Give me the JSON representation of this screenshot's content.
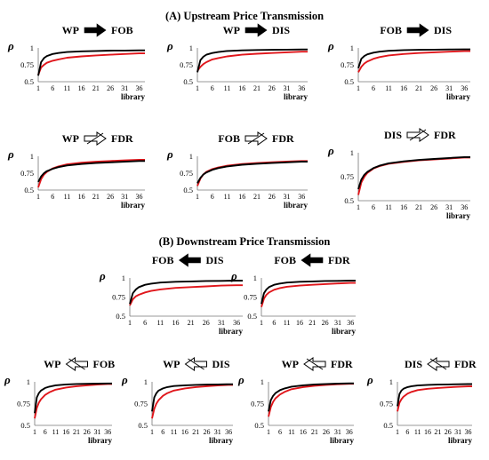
{
  "sections": {
    "upstream": "(A)  Upstream Price Transmission",
    "downstream": "(B)  Downstream Price Transmission"
  },
  "colors": {
    "series_black": "#000000",
    "series_red": "#e0161b",
    "axis": "#777777"
  },
  "chart_data": [
    {
      "id": "A1",
      "type": "line",
      "from": "WP",
      "to": "FOB",
      "arrow": "solid-right",
      "ylabel": "ρ",
      "xlabel": "library",
      "yticks": [
        "0.5",
        "0.75",
        "1"
      ],
      "ylim": [
        0.5,
        1
      ],
      "xticks": [
        1,
        6,
        11,
        16,
        21,
        26,
        31,
        36
      ],
      "xlim": [
        1,
        38
      ],
      "series": [
        {
          "color": "black",
          "x": [
            1,
            2,
            3,
            4,
            6,
            8,
            11,
            16,
            21,
            26,
            31,
            36,
            38
          ],
          "values": [
            0.59,
            0.79,
            0.85,
            0.88,
            0.91,
            0.925,
            0.94,
            0.95,
            0.955,
            0.96,
            0.962,
            0.965,
            0.965
          ]
        },
        {
          "color": "red",
          "x": [
            1,
            2,
            3,
            4,
            6,
            8,
            11,
            16,
            21,
            26,
            31,
            36,
            38
          ],
          "values": [
            0.6,
            0.71,
            0.75,
            0.78,
            0.81,
            0.83,
            0.855,
            0.875,
            0.89,
            0.9,
            0.91,
            0.92,
            0.92
          ]
        }
      ]
    },
    {
      "id": "A2",
      "type": "line",
      "from": "WP",
      "to": "DIS",
      "arrow": "solid-right",
      "ylabel": "ρ",
      "xlabel": "library",
      "yticks": [
        "0.5",
        "0.75",
        "1"
      ],
      "ylim": [
        0.5,
        1
      ],
      "xticks": [
        1,
        6,
        11,
        16,
        21,
        26,
        31,
        36
      ],
      "xlim": [
        1,
        38
      ],
      "series": [
        {
          "color": "black",
          "x": [
            1,
            2,
            3,
            4,
            6,
            8,
            11,
            16,
            21,
            26,
            31,
            36,
            38
          ],
          "values": [
            0.64,
            0.82,
            0.87,
            0.9,
            0.925,
            0.94,
            0.955,
            0.965,
            0.97,
            0.972,
            0.975,
            0.977,
            0.977
          ]
        },
        {
          "color": "red",
          "x": [
            1,
            2,
            3,
            4,
            6,
            8,
            11,
            16,
            21,
            26,
            31,
            36,
            38
          ],
          "values": [
            0.66,
            0.72,
            0.76,
            0.79,
            0.83,
            0.85,
            0.875,
            0.9,
            0.915,
            0.925,
            0.935,
            0.945,
            0.945
          ]
        }
      ]
    },
    {
      "id": "A3",
      "type": "line",
      "from": "FOB",
      "to": "DIS",
      "arrow": "solid-right",
      "ylabel": "ρ",
      "xlabel": "library",
      "yticks": [
        "0.5",
        "0.75",
        "1"
      ],
      "ylim": [
        0.5,
        1
      ],
      "xticks": [
        1,
        6,
        11,
        16,
        21,
        26,
        31,
        36
      ],
      "xlim": [
        1,
        38
      ],
      "series": [
        {
          "color": "black",
          "x": [
            1,
            2,
            3,
            4,
            6,
            8,
            11,
            16,
            21,
            26,
            31,
            36,
            38
          ],
          "values": [
            0.7,
            0.84,
            0.88,
            0.905,
            0.93,
            0.945,
            0.958,
            0.968,
            0.972,
            0.975,
            0.977,
            0.979,
            0.979
          ]
        },
        {
          "color": "red",
          "x": [
            1,
            2,
            3,
            4,
            6,
            8,
            11,
            16,
            21,
            26,
            31,
            36,
            38
          ],
          "values": [
            0.64,
            0.72,
            0.77,
            0.8,
            0.84,
            0.865,
            0.89,
            0.91,
            0.925,
            0.935,
            0.945,
            0.952,
            0.952
          ]
        }
      ]
    },
    {
      "id": "A4",
      "type": "line",
      "from": "WP",
      "to": "FDR",
      "arrow": "hollow-right",
      "ylabel": "ρ",
      "xlabel": "library",
      "yticks": [
        "0.5",
        "0.75",
        "1"
      ],
      "ylim": [
        0.5,
        1
      ],
      "xticks": [
        1,
        6,
        11,
        16,
        21,
        26,
        31,
        36
      ],
      "xlim": [
        1,
        38
      ],
      "series": [
        {
          "color": "black",
          "x": [
            1,
            2,
            3,
            4,
            6,
            8,
            11,
            16,
            21,
            26,
            31,
            36,
            38
          ],
          "values": [
            0.62,
            0.7,
            0.75,
            0.78,
            0.815,
            0.84,
            0.865,
            0.885,
            0.9,
            0.91,
            0.92,
            0.93,
            0.93
          ]
        },
        {
          "color": "red",
          "x": [
            1,
            2,
            3,
            4,
            6,
            8,
            11,
            16,
            21,
            26,
            31,
            36,
            38
          ],
          "values": [
            0.54,
            0.66,
            0.73,
            0.77,
            0.82,
            0.85,
            0.88,
            0.905,
            0.92,
            0.93,
            0.94,
            0.948,
            0.948
          ]
        }
      ]
    },
    {
      "id": "A5",
      "type": "line",
      "from": "FOB",
      "to": "FDR",
      "arrow": "hollow-right",
      "ylabel": "ρ",
      "xlabel": "library",
      "yticks": [
        "0.5",
        "0.75",
        "1"
      ],
      "ylim": [
        0.5,
        1
      ],
      "xticks": [
        1,
        6,
        11,
        16,
        21,
        26,
        31,
        36
      ],
      "xlim": [
        1,
        38
      ],
      "series": [
        {
          "color": "black",
          "x": [
            1,
            2,
            3,
            4,
            6,
            8,
            11,
            16,
            21,
            26,
            31,
            36,
            38
          ],
          "values": [
            0.6,
            0.68,
            0.73,
            0.76,
            0.8,
            0.825,
            0.85,
            0.875,
            0.89,
            0.9,
            0.91,
            0.92,
            0.92
          ]
        },
        {
          "color": "red",
          "x": [
            1,
            2,
            3,
            4,
            6,
            8,
            11,
            16,
            21,
            26,
            31,
            36,
            38
          ],
          "values": [
            0.56,
            0.67,
            0.73,
            0.77,
            0.81,
            0.835,
            0.86,
            0.885,
            0.9,
            0.912,
            0.922,
            0.93,
            0.93
          ]
        }
      ]
    },
    {
      "id": "A6",
      "type": "line",
      "from": "DIS",
      "to": "FDR",
      "arrow": "hollow-right",
      "ylabel": "ρ",
      "xlabel": "library",
      "yticks": [
        "0.5",
        "0.75",
        "1"
      ],
      "ylim": [
        0.5,
        1
      ],
      "xticks": [
        1,
        6,
        11,
        16,
        21,
        26,
        31,
        36
      ],
      "xlim": [
        1,
        38
      ],
      "series": [
        {
          "color": "black",
          "x": [
            1,
            2,
            3,
            4,
            6,
            8,
            11,
            16,
            21,
            26,
            31,
            36,
            38
          ],
          "values": [
            0.62,
            0.72,
            0.77,
            0.8,
            0.84,
            0.865,
            0.89,
            0.91,
            0.925,
            0.935,
            0.945,
            0.955,
            0.955
          ]
        },
        {
          "color": "red",
          "x": [
            1,
            2,
            3,
            4,
            6,
            8,
            11,
            16,
            21,
            26,
            31,
            36,
            38
          ],
          "values": [
            0.56,
            0.69,
            0.75,
            0.79,
            0.835,
            0.86,
            0.885,
            0.905,
            0.92,
            0.93,
            0.94,
            0.95,
            0.95
          ]
        }
      ]
    },
    {
      "id": "B1",
      "type": "line",
      "from": "FOB",
      "to": "DIS",
      "arrow": "solid-left",
      "ylabel": "ρ",
      "xlabel": "library",
      "yticks": [
        "0.5",
        "0.75",
        "1"
      ],
      "ylim": [
        0.5,
        1
      ],
      "xticks": [
        1,
        6,
        11,
        16,
        21,
        26,
        31,
        36
      ],
      "xlim": [
        1,
        38
      ],
      "series": [
        {
          "color": "black",
          "x": [
            1,
            2,
            3,
            4,
            6,
            8,
            11,
            16,
            21,
            26,
            31,
            36,
            38
          ],
          "values": [
            0.66,
            0.8,
            0.85,
            0.88,
            0.91,
            0.925,
            0.94,
            0.95,
            0.955,
            0.96,
            0.962,
            0.965,
            0.965
          ]
        },
        {
          "color": "red",
          "x": [
            1,
            2,
            3,
            4,
            6,
            8,
            11,
            16,
            21,
            26,
            31,
            36,
            38
          ],
          "values": [
            0.64,
            0.72,
            0.76,
            0.78,
            0.81,
            0.83,
            0.85,
            0.87,
            0.88,
            0.89,
            0.9,
            0.905,
            0.905
          ]
        }
      ]
    },
    {
      "id": "B2",
      "type": "line",
      "from": "FOB",
      "to": "FDR",
      "arrow": "solid-left",
      "ylabel": "ρ",
      "xlabel": "library",
      "yticks": [
        "0.5",
        "0.75",
        "1"
      ],
      "ylim": [
        0.5,
        1
      ],
      "xticks": [
        1,
        6,
        11,
        16,
        21,
        26,
        31,
        36
      ],
      "xlim": [
        1,
        38
      ],
      "series": [
        {
          "color": "black",
          "x": [
            1,
            2,
            3,
            4,
            6,
            8,
            11,
            16,
            21,
            26,
            31,
            36,
            38
          ],
          "values": [
            0.66,
            0.8,
            0.85,
            0.88,
            0.91,
            0.925,
            0.94,
            0.95,
            0.955,
            0.96,
            0.962,
            0.965,
            0.965
          ]
        },
        {
          "color": "red",
          "x": [
            1,
            2,
            3,
            4,
            6,
            8,
            11,
            16,
            21,
            26,
            31,
            36,
            38
          ],
          "values": [
            0.62,
            0.73,
            0.78,
            0.81,
            0.845,
            0.865,
            0.885,
            0.9,
            0.91,
            0.92,
            0.928,
            0.935,
            0.935
          ]
        }
      ]
    },
    {
      "id": "B3",
      "type": "line",
      "from": "WP",
      "to": "FOB",
      "arrow": "hollow-left",
      "ylabel": "ρ",
      "xlabel": "library",
      "yticks": [
        "0.5",
        "0.75",
        "1"
      ],
      "ylim": [
        0.5,
        1
      ],
      "xticks": [
        1,
        6,
        11,
        16,
        21,
        26,
        31,
        36
      ],
      "xlim": [
        1,
        38
      ],
      "series": [
        {
          "color": "black",
          "x": [
            1,
            2,
            3,
            4,
            6,
            8,
            11,
            16,
            21,
            26,
            31,
            36,
            38
          ],
          "values": [
            0.64,
            0.82,
            0.87,
            0.9,
            0.93,
            0.945,
            0.96,
            0.97,
            0.975,
            0.978,
            0.98,
            0.982,
            0.982
          ]
        },
        {
          "color": "red",
          "x": [
            1,
            2,
            3,
            4,
            6,
            8,
            11,
            16,
            21,
            26,
            31,
            36,
            38
          ],
          "values": [
            0.58,
            0.7,
            0.76,
            0.8,
            0.85,
            0.88,
            0.91,
            0.935,
            0.95,
            0.96,
            0.968,
            0.975,
            0.975
          ]
        }
      ]
    },
    {
      "id": "B4",
      "type": "line",
      "from": "WP",
      "to": "DIS",
      "arrow": "hollow-left",
      "ylabel": "ρ",
      "xlabel": "library",
      "yticks": [
        "0.5",
        "0.75",
        "1"
      ],
      "ylim": [
        0.5,
        1
      ],
      "xticks": [
        1,
        6,
        11,
        16,
        21,
        26,
        31,
        36
      ],
      "xlim": [
        1,
        38
      ],
      "series": [
        {
          "color": "black",
          "x": [
            1,
            2,
            3,
            4,
            6,
            8,
            11,
            16,
            21,
            26,
            31,
            36,
            38
          ],
          "values": [
            0.66,
            0.82,
            0.87,
            0.9,
            0.925,
            0.94,
            0.952,
            0.96,
            0.965,
            0.968,
            0.97,
            0.972,
            0.972
          ]
        },
        {
          "color": "red",
          "x": [
            1,
            2,
            3,
            4,
            6,
            8,
            11,
            16,
            21,
            26,
            31,
            36,
            38
          ],
          "values": [
            0.58,
            0.69,
            0.75,
            0.79,
            0.84,
            0.87,
            0.9,
            0.925,
            0.94,
            0.95,
            0.958,
            0.965,
            0.965
          ]
        }
      ]
    },
    {
      "id": "B5",
      "type": "line",
      "from": "WP",
      "to": "FDR",
      "arrow": "hollow-left",
      "ylabel": "ρ",
      "xlabel": "library",
      "yticks": [
        "0.5",
        "0.75",
        "1"
      ],
      "ylim": [
        0.5,
        1
      ],
      "xticks": [
        1,
        6,
        11,
        16,
        21,
        26,
        31,
        36
      ],
      "xlim": [
        1,
        38
      ],
      "series": [
        {
          "color": "black",
          "x": [
            1,
            2,
            3,
            4,
            6,
            8,
            11,
            16,
            21,
            26,
            31,
            36,
            38
          ],
          "values": [
            0.66,
            0.79,
            0.84,
            0.87,
            0.905,
            0.925,
            0.945,
            0.96,
            0.97,
            0.975,
            0.98,
            0.983,
            0.983
          ]
        },
        {
          "color": "red",
          "x": [
            1,
            2,
            3,
            4,
            6,
            8,
            11,
            16,
            21,
            26,
            31,
            36,
            38
          ],
          "values": [
            0.6,
            0.71,
            0.77,
            0.81,
            0.855,
            0.885,
            0.915,
            0.94,
            0.955,
            0.965,
            0.972,
            0.978,
            0.978
          ]
        }
      ]
    },
    {
      "id": "B6",
      "type": "line",
      "from": "DIS",
      "to": "FDR",
      "arrow": "hollow-left",
      "ylabel": "ρ",
      "xlabel": "library",
      "yticks": [
        "0.5",
        "0.75",
        "1"
      ],
      "ylim": [
        0.5,
        1
      ],
      "xticks": [
        1,
        6,
        11,
        16,
        21,
        26,
        31,
        36
      ],
      "xlim": [
        1,
        38
      ],
      "series": [
        {
          "color": "black",
          "x": [
            1,
            2,
            3,
            4,
            6,
            8,
            11,
            16,
            21,
            26,
            31,
            36,
            38
          ],
          "values": [
            0.72,
            0.86,
            0.9,
            0.92,
            0.94,
            0.95,
            0.958,
            0.965,
            0.968,
            0.97,
            0.972,
            0.974,
            0.974
          ]
        },
        {
          "color": "red",
          "x": [
            1,
            2,
            3,
            4,
            6,
            8,
            11,
            16,
            21,
            26,
            31,
            36,
            38
          ],
          "values": [
            0.66,
            0.76,
            0.8,
            0.83,
            0.865,
            0.885,
            0.905,
            0.92,
            0.93,
            0.937,
            0.943,
            0.948,
            0.948
          ]
        }
      ]
    }
  ]
}
